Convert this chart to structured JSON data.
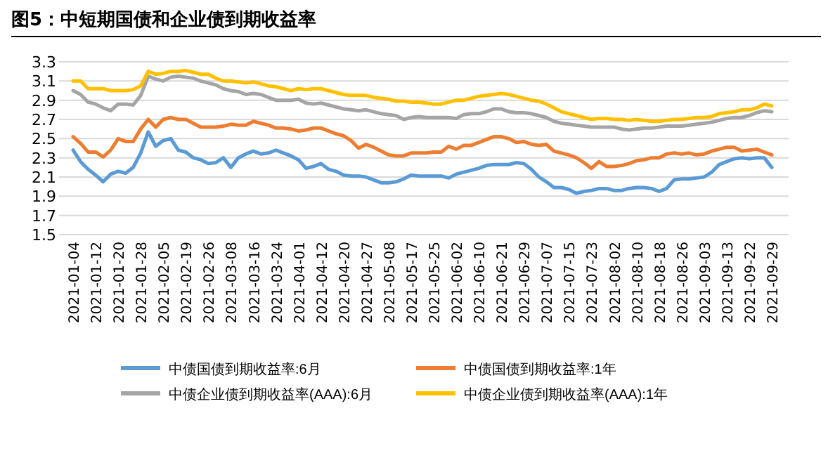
{
  "chart_data": {
    "type": "line",
    "title": "图5：中短期国债和企业债到期收益率",
    "categories": [
      "2021-01-04",
      null,
      null,
      "2021-01-12",
      null,
      null,
      "2021-01-20",
      null,
      null,
      "2021-01-28",
      null,
      null,
      "2021-02-05",
      null,
      null,
      "2021-02-19",
      null,
      null,
      "2021-02-26",
      null,
      null,
      "2021-03-08",
      null,
      null,
      "2021-03-16",
      null,
      null,
      "2021-03-24",
      null,
      null,
      "2021-04-01",
      null,
      null,
      "2021-04-12",
      null,
      null,
      "2021-04-20",
      null,
      null,
      "2021-04-27",
      null,
      null,
      "2021-05-08",
      null,
      null,
      "2021-05-17",
      null,
      null,
      "2021-05-25",
      null,
      null,
      "2021-06-02",
      null,
      null,
      "2021-06-10",
      null,
      null,
      "2021-06-21",
      null,
      null,
      "2021-06-29",
      null,
      null,
      "2021-07-07",
      null,
      null,
      "2021-07-15",
      null,
      null,
      "2021-07-23",
      null,
      null,
      "2021-08-02",
      null,
      null,
      "2021-08-10",
      null,
      null,
      "2021-08-18",
      null,
      null,
      "2021-08-26",
      null,
      null,
      "2021-09-03",
      null,
      null,
      "2021-09-13",
      null,
      null,
      "2021-09-22",
      null,
      null,
      "2021-09-29"
    ],
    "series": [
      {
        "name": "中债国债到期收益率:6月",
        "color": "#5b9bd5",
        "values": [
          2.38,
          2.26,
          2.18,
          2.12,
          2.05,
          2.13,
          2.16,
          2.14,
          2.2,
          2.35,
          2.57,
          2.42,
          2.48,
          2.5,
          2.38,
          2.36,
          2.3,
          2.28,
          2.24,
          2.25,
          2.3,
          2.2,
          2.3,
          2.34,
          2.37,
          2.34,
          2.35,
          2.38,
          2.35,
          2.32,
          2.28,
          2.19,
          2.21,
          2.24,
          2.18,
          2.16,
          2.12,
          2.11,
          2.11,
          2.1,
          2.07,
          2.04,
          2.04,
          2.05,
          2.08,
          2.12,
          2.11,
          2.11,
          2.11,
          2.11,
          2.09,
          2.13,
          2.15,
          2.17,
          2.19,
          2.22,
          2.23,
          2.23,
          2.23,
          2.25,
          2.24,
          2.18,
          2.1,
          2.05,
          1.99,
          1.99,
          1.97,
          1.93,
          1.95,
          1.96,
          1.98,
          1.98,
          1.96,
          1.96,
          1.98,
          1.99,
          1.99,
          1.98,
          1.95,
          1.98,
          2.07,
          2.08,
          2.08,
          2.09,
          2.1,
          2.15,
          2.23,
          2.26,
          2.29,
          2.3,
          2.29,
          2.3,
          2.3,
          2.2
        ]
      },
      {
        "name": "中债国债到期收益率:1年",
        "color": "#ed7d31",
        "values": [
          2.52,
          2.45,
          2.36,
          2.36,
          2.31,
          2.38,
          2.5,
          2.47,
          2.47,
          2.6,
          2.7,
          2.62,
          2.7,
          2.72,
          2.7,
          2.7,
          2.66,
          2.62,
          2.62,
          2.62,
          2.63,
          2.65,
          2.64,
          2.64,
          2.68,
          2.66,
          2.64,
          2.61,
          2.61,
          2.6,
          2.58,
          2.59,
          2.61,
          2.61,
          2.58,
          2.55,
          2.53,
          2.48,
          2.4,
          2.44,
          2.41,
          2.37,
          2.33,
          2.32,
          2.32,
          2.35,
          2.35,
          2.35,
          2.36,
          2.36,
          2.42,
          2.39,
          2.43,
          2.43,
          2.46,
          2.49,
          2.52,
          2.52,
          2.5,
          2.46,
          2.47,
          2.44,
          2.43,
          2.44,
          2.37,
          2.35,
          2.33,
          2.3,
          2.25,
          2.19,
          2.26,
          2.21,
          2.21,
          2.22,
          2.24,
          2.27,
          2.28,
          2.3,
          2.3,
          2.34,
          2.35,
          2.34,
          2.35,
          2.33,
          2.34,
          2.37,
          2.39,
          2.41,
          2.41,
          2.37,
          2.38,
          2.39,
          2.36,
          2.33
        ]
      },
      {
        "name": "中债企业债到期收益率(AAA):6月",
        "color": "#a5a5a5",
        "values": [
          3.0,
          2.96,
          2.88,
          2.86,
          2.82,
          2.79,
          2.86,
          2.86,
          2.85,
          2.95,
          3.15,
          3.12,
          3.1,
          3.14,
          3.15,
          3.14,
          3.13,
          3.1,
          3.08,
          3.06,
          3.02,
          3.0,
          2.99,
          2.96,
          2.97,
          2.96,
          2.93,
          2.9,
          2.9,
          2.9,
          2.91,
          2.87,
          2.86,
          2.87,
          2.85,
          2.83,
          2.81,
          2.8,
          2.79,
          2.8,
          2.78,
          2.76,
          2.75,
          2.74,
          2.7,
          2.72,
          2.73,
          2.72,
          2.72,
          2.72,
          2.72,
          2.71,
          2.75,
          2.76,
          2.76,
          2.78,
          2.81,
          2.81,
          2.78,
          2.77,
          2.77,
          2.76,
          2.74,
          2.72,
          2.68,
          2.66,
          2.65,
          2.64,
          2.63,
          2.62,
          2.62,
          2.62,
          2.62,
          2.6,
          2.59,
          2.6,
          2.61,
          2.61,
          2.62,
          2.63,
          2.63,
          2.63,
          2.64,
          2.65,
          2.66,
          2.67,
          2.69,
          2.71,
          2.72,
          2.72,
          2.74,
          2.77,
          2.79,
          2.78
        ]
      },
      {
        "name": "中债企业债到期收益率(AAA):1年",
        "color": "#ffc000",
        "values": [
          3.1,
          3.1,
          3.02,
          3.02,
          3.02,
          3.0,
          3.0,
          3.0,
          3.01,
          3.05,
          3.2,
          3.17,
          3.18,
          3.2,
          3.2,
          3.21,
          3.19,
          3.17,
          3.17,
          3.13,
          3.1,
          3.1,
          3.09,
          3.08,
          3.09,
          3.07,
          3.05,
          3.04,
          3.02,
          3.0,
          3.02,
          3.01,
          3.02,
          3.02,
          3.0,
          2.98,
          2.96,
          2.95,
          2.95,
          2.95,
          2.93,
          2.92,
          2.91,
          2.89,
          2.89,
          2.88,
          2.88,
          2.87,
          2.86,
          2.86,
          2.88,
          2.9,
          2.9,
          2.92,
          2.94,
          2.95,
          2.96,
          2.97,
          2.96,
          2.94,
          2.92,
          2.9,
          2.89,
          2.86,
          2.82,
          2.78,
          2.76,
          2.74,
          2.72,
          2.7,
          2.71,
          2.71,
          2.7,
          2.7,
          2.69,
          2.7,
          2.69,
          2.68,
          2.68,
          2.69,
          2.7,
          2.7,
          2.71,
          2.72,
          2.72,
          2.73,
          2.76,
          2.77,
          2.78,
          2.8,
          2.8,
          2.82,
          2.86,
          2.84
        ]
      }
    ],
    "ylim": [
      1.5,
      3.3
    ],
    "yticks": [
      1.5,
      1.7,
      1.9,
      2.1,
      2.3,
      2.5,
      2.7,
      2.9,
      3.1,
      3.3
    ],
    "grid": "y",
    "legend": "bottom"
  }
}
